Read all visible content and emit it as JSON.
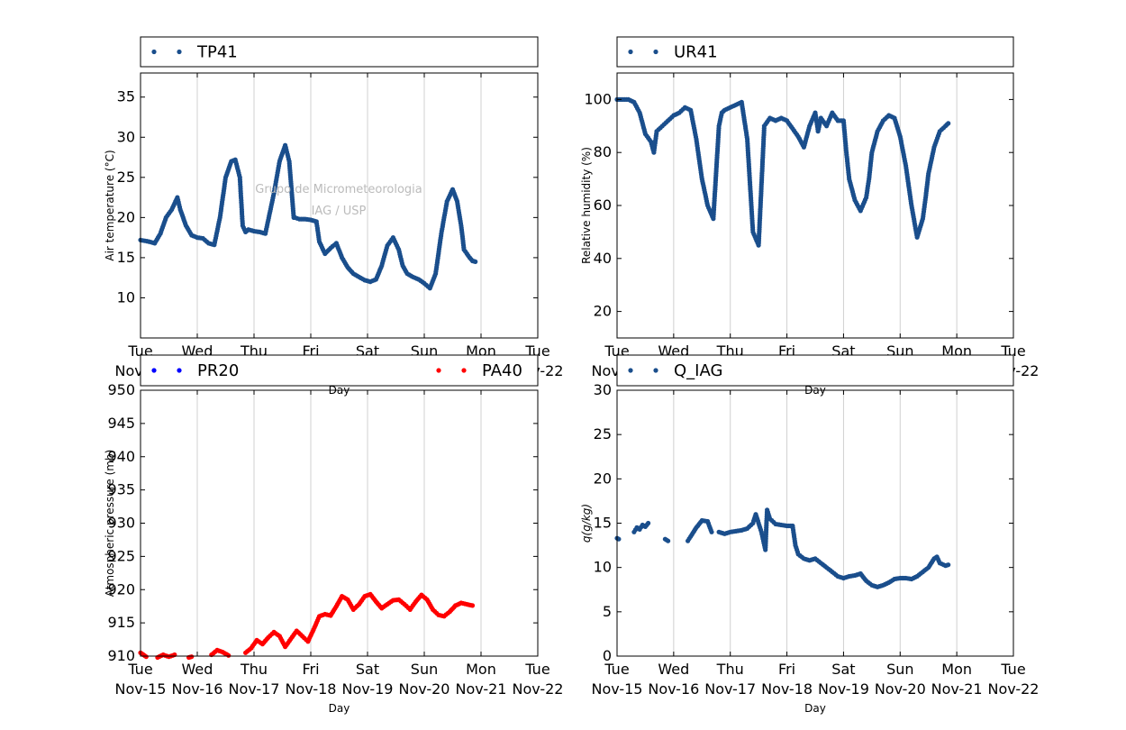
{
  "watermark": {
    "line1": "Grupo de Micrometeorologia",
    "line2": "IAG / USP",
    "color": "#bbbbbb"
  },
  "x_axis": {
    "ticks": [
      {
        "day": 0,
        "line1": "Tue",
        "line2": "Nov-15"
      },
      {
        "day": 1,
        "line1": "Wed",
        "line2": "Nov-16"
      },
      {
        "day": 2,
        "line1": "Thu",
        "line2": "Nov-17"
      },
      {
        "day": 3,
        "line1": "Fri",
        "line2": "Nov-18"
      },
      {
        "day": 4,
        "line1": "Sat",
        "line2": "Nov-19"
      },
      {
        "day": 5,
        "line1": "Sun",
        "line2": "Nov-20"
      },
      {
        "day": 6,
        "line1": "Mon",
        "line2": "Nov-21"
      },
      {
        "day": 7,
        "line1": "Tue",
        "line2": "Nov-22"
      }
    ],
    "label": "Day",
    "range": [
      0,
      7
    ]
  },
  "chart_data": [
    {
      "id": "temp",
      "type": "scatter",
      "ylabel": "Air temperature (°C)",
      "ylim": [
        5,
        38
      ],
      "yticks": [
        10,
        15,
        20,
        25,
        30,
        35
      ],
      "grid": "vertical",
      "legend_placement": "top",
      "series": [
        {
          "name": "TP41",
          "color": "#1a4e8c",
          "segments": [
            {
              "x": [
                0,
                0.15,
                0.25,
                0.35,
                0.45,
                0.55,
                0.65,
                0.7,
                0.8,
                0.9,
                1.0,
                1.1,
                1.2,
                1.3,
                1.4,
                1.5,
                1.6,
                1.67,
                1.75,
                1.8,
                1.85,
                1.9,
                2.0,
                2.1,
                2.2,
                2.35,
                2.45,
                2.55,
                2.62,
                2.7,
                2.72,
                2.8,
                2.9,
                3.0,
                3.1,
                3.15,
                3.25,
                3.35,
                3.45,
                3.55,
                3.65,
                3.75,
                3.85,
                3.95,
                4.05,
                4.15,
                4.25,
                4.35,
                4.45,
                4.55,
                4.62,
                4.7,
                4.8,
                4.9,
                5.0,
                5.1,
                5.2,
                5.3,
                5.4,
                5.5,
                5.58,
                5.65,
                5.7,
                5.8,
                5.85,
                5.9
              ],
              "y": [
                17.2,
                17,
                16.8,
                18,
                20,
                21,
                22.5,
                21,
                19,
                17.8,
                17.5,
                17.4,
                16.8,
                16.6,
                20,
                25,
                27,
                27.2,
                25,
                19,
                18.2,
                18.5,
                18.3,
                18.2,
                18,
                23,
                27,
                29,
                27,
                20,
                20,
                19.8,
                19.8,
                19.7,
                19.5,
                17,
                15.5,
                16.2,
                16.8,
                15,
                13.8,
                13,
                12.6,
                12.2,
                12,
                12.3,
                14,
                16.5,
                17.5,
                16,
                14,
                13,
                12.6,
                12.3,
                11.8,
                11.2,
                13,
                18,
                22,
                23.5,
                22,
                19,
                16,
                15,
                14.6,
                14.5
              ]
            }
          ]
        }
      ]
    },
    {
      "id": "rh",
      "type": "scatter",
      "ylabel": "Relative humidity (%)",
      "ylim": [
        10,
        110
      ],
      "yticks": [
        20,
        40,
        60,
        80,
        100
      ],
      "grid": "vertical",
      "legend_placement": "top",
      "series": [
        {
          "name": "UR41",
          "color": "#1a4e8c",
          "segments": [
            {
              "x": [
                0,
                0.1,
                0.2,
                0.3,
                0.4,
                0.5,
                0.6,
                0.65,
                0.7,
                0.8,
                0.9,
                1.0,
                1.1,
                1.2,
                1.3,
                1.4,
                1.5,
                1.6,
                1.7,
                1.8,
                1.85,
                1.9,
                2.0,
                2.1,
                2.2,
                2.3,
                2.4,
                2.5,
                2.6,
                2.7,
                2.8,
                2.9,
                3.0,
                3.1,
                3.2,
                3.3,
                3.4,
                3.5,
                3.55,
                3.6,
                3.7,
                3.8,
                3.9,
                4.0,
                4.05,
                4.1,
                4.2,
                4.3,
                4.4,
                4.45,
                4.5,
                4.6,
                4.7,
                4.8,
                4.9,
                5.0,
                5.1,
                5.2,
                5.3,
                5.4,
                5.45,
                5.5,
                5.6,
                5.7,
                5.8,
                5.85
              ],
              "y": [
                100,
                100,
                100,
                99,
                95,
                87,
                84,
                80,
                88,
                90,
                92,
                94,
                95,
                97,
                96,
                85,
                70,
                60,
                55,
                90,
                95,
                96,
                97,
                98,
                99,
                85,
                50,
                45,
                90,
                93,
                92,
                93,
                92,
                89,
                86,
                82,
                90,
                95,
                88,
                93,
                90,
                95,
                92,
                92,
                80,
                70,
                62,
                58,
                63,
                70,
                80,
                88,
                92,
                94,
                93,
                86,
                75,
                60,
                48,
                55,
                63,
                72,
                82,
                88,
                90,
                91
              ]
            }
          ]
        }
      ]
    },
    {
      "id": "pressure",
      "type": "scatter",
      "ylabel": "Atmospheric pressure (mb)",
      "ylim": [
        910,
        950
      ],
      "yticks": [
        910,
        915,
        920,
        925,
        930,
        935,
        940,
        945,
        950
      ],
      "grid": "vertical",
      "legend_placement": "top",
      "series": [
        {
          "name": "PR20",
          "color": "#0000ff",
          "segments": []
        },
        {
          "name": "PA40",
          "color": "#ff0000",
          "segments": [
            {
              "x": [
                0,
                0.05,
                0.1
              ],
              "y": [
                910.5,
                910.2,
                909.9
              ]
            },
            {
              "x": [
                0.3,
                0.4,
                0.5,
                0.6
              ],
              "y": [
                909.8,
                910.2,
                909.9,
                910.2
              ]
            },
            {
              "x": [
                0.85,
                0.9
              ],
              "y": [
                909.8,
                909.9
              ]
            },
            {
              "x": [
                1.25,
                1.35,
                1.45,
                1.55
              ],
              "y": [
                910.2,
                910.9,
                910.6,
                910.1
              ]
            },
            {
              "x": [
                1.85,
                1.95,
                2.05,
                2.15,
                2.25,
                2.35,
                2.45,
                2.55,
                2.65,
                2.75,
                2.85,
                2.95,
                3.05,
                3.15,
                3.25,
                3.35,
                3.45,
                3.55,
                3.65,
                3.75,
                3.85,
                3.95,
                4.05,
                4.15,
                4.25,
                4.35,
                4.45,
                4.55,
                4.65,
                4.75,
                4.85,
                4.95,
                5.05,
                5.15,
                5.25,
                5.35,
                5.45,
                5.55,
                5.65,
                5.75,
                5.85
              ],
              "y": [
                910.5,
                911.2,
                912.4,
                911.8,
                912.8,
                913.6,
                913.0,
                911.4,
                912.6,
                913.8,
                913.0,
                912.2,
                914.0,
                916.0,
                916.3,
                916.1,
                917.5,
                919.0,
                918.5,
                917.0,
                917.8,
                919.0,
                919.3,
                918.2,
                917.2,
                917.8,
                918.4,
                918.5,
                917.8,
                917.0,
                918.2,
                919.2,
                918.5,
                917.0,
                916.2,
                916.0,
                916.7,
                917.6,
                918.0,
                917.8,
                917.6
              ]
            }
          ]
        }
      ]
    },
    {
      "id": "q",
      "type": "scatter",
      "ylabel": "q(g/kg)",
      "ylim": [
        0,
        30
      ],
      "yticks": [
        0,
        5,
        10,
        15,
        20,
        25,
        30
      ],
      "grid": "vertical",
      "legend_placement": "top",
      "series": [
        {
          "name": "Q_IAG",
          "color": "#1a4e8c",
          "segments": [
            {
              "x": [
                0,
                0.03
              ],
              "y": [
                13.3,
                13.2
              ]
            },
            {
              "x": [
                0.3,
                0.35,
                0.4,
                0.45,
                0.5,
                0.55
              ],
              "y": [
                14,
                14.5,
                14.3,
                14.8,
                14.6,
                15
              ]
            },
            {
              "x": [
                0.85,
                0.9
              ],
              "y": [
                13.2,
                13
              ]
            },
            {
              "x": [
                1.25,
                1.3,
                1.4,
                1.5,
                1.6,
                1.67
              ],
              "y": [
                13,
                13.5,
                14.5,
                15.3,
                15.2,
                14
              ]
            },
            {
              "x": [
                1.8,
                1.9,
                2.0,
                2.1,
                2.2,
                2.3,
                2.4,
                2.45,
                2.55,
                2.62,
                2.65,
                2.7,
                2.8,
                2.9,
                3.0,
                3.1,
                3.15,
                3.2,
                3.3,
                3.4,
                3.5,
                3.6,
                3.7,
                3.8,
                3.9,
                4.0,
                4.1,
                4.2,
                4.3,
                4.4,
                4.5,
                4.6,
                4.7,
                4.8,
                4.9,
                5.0,
                5.1,
                5.2,
                5.3,
                5.4,
                5.5,
                5.6,
                5.65,
                5.7,
                5.8,
                5.85
              ],
              "y": [
                14,
                13.8,
                14,
                14.1,
                14.2,
                14.4,
                15,
                16,
                14,
                12,
                16.5,
                15.5,
                14.9,
                14.8,
                14.7,
                14.7,
                12.5,
                11.5,
                11,
                10.8,
                11,
                10.5,
                10,
                9.5,
                9,
                8.8,
                9,
                9.1,
                9.3,
                8.5,
                8,
                7.8,
                8,
                8.3,
                8.7,
                8.8,
                8.8,
                8.7,
                9,
                9.5,
                10,
                11,
                11.2,
                10.5,
                10.2,
                10.3
              ]
            }
          ]
        }
      ]
    }
  ]
}
